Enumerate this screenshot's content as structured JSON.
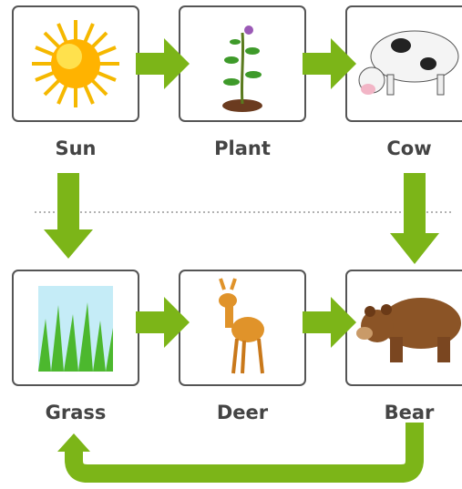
{
  "nodes": [
    {
      "label": "Sun"
    },
    {
      "label": "Plant"
    },
    {
      "label": "Cow"
    },
    {
      "label": "Grass"
    },
    {
      "label": "Deer"
    },
    {
      "label": "Bear"
    }
  ]
}
